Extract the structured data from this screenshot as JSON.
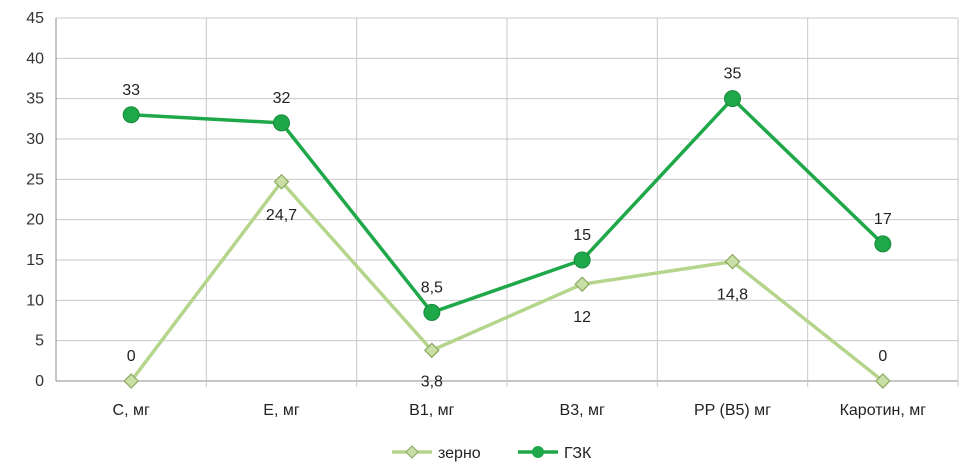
{
  "chart_data": {
    "type": "line",
    "categories": [
      "С, мг",
      "Е, мг",
      "В1, мг",
      "В3, мг",
      "PP (В5) мг",
      "Каротин, мг"
    ],
    "ylim": [
      0,
      45
    ],
    "yticks": [
      0,
      5,
      10,
      15,
      20,
      25,
      30,
      35,
      40,
      45
    ],
    "grid": true,
    "legend_position": "bottom",
    "series": [
      {
        "name": "зерно",
        "values": [
          0,
          24.7,
          3.8,
          12,
          14.8,
          0
        ],
        "labels": [
          "0",
          "24,7",
          "3,8",
          "12",
          "14,8",
          "0"
        ],
        "color": "#b5d58c",
        "marker": "diamond"
      },
      {
        "name": "ГЗК",
        "values": [
          33,
          32,
          8.5,
          15,
          35,
          17
        ],
        "labels": [
          "33",
          "32",
          "8,5",
          "15",
          "35",
          "17"
        ],
        "color": "#1fa84a",
        "marker": "circle"
      }
    ]
  }
}
